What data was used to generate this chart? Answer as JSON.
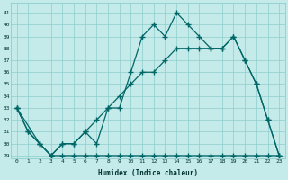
{
  "xlabel": "Humidex (Indice chaleur)",
  "bg_color": "#c5eaea",
  "grid_color": "#8ecece",
  "line_color": "#006666",
  "xlim": [
    -0.5,
    23.5
  ],
  "ylim": [
    28.8,
    41.8
  ],
  "xticks": [
    0,
    1,
    2,
    3,
    4,
    5,
    6,
    7,
    8,
    9,
    10,
    11,
    12,
    13,
    14,
    15,
    16,
    17,
    18,
    19,
    20,
    21,
    22,
    23
  ],
  "yticks": [
    29,
    30,
    31,
    32,
    33,
    34,
    35,
    36,
    37,
    38,
    39,
    40,
    41
  ],
  "line1_x": [
    0,
    1,
    2,
    3,
    4,
    5,
    6,
    7,
    8,
    9,
    10,
    11,
    12,
    13,
    14,
    15,
    16,
    17,
    18,
    19,
    20,
    21,
    22,
    23
  ],
  "line1_y": [
    33,
    31,
    30,
    29,
    30,
    30,
    31,
    30,
    33,
    33,
    36,
    39,
    40,
    39,
    41,
    40,
    39,
    38,
    38,
    39,
    37,
    35,
    32,
    29
  ],
  "line2_x": [
    0,
    1,
    2,
    3,
    4,
    5,
    6,
    7,
    8,
    9,
    10,
    11,
    12,
    13,
    14,
    15,
    16,
    17,
    18,
    19,
    20,
    21,
    22,
    23
  ],
  "line2_y": [
    33,
    31,
    30,
    29,
    30,
    30,
    31,
    32,
    33,
    34,
    35,
    36,
    36,
    37,
    38,
    38,
    38,
    38,
    38,
    39,
    37,
    35,
    32,
    29
  ],
  "line3_x": [
    0,
    2,
    3,
    4,
    5,
    6,
    7,
    8,
    9,
    10,
    11,
    12,
    13,
    14,
    15,
    16,
    17,
    18,
    19,
    20,
    21,
    22,
    23
  ],
  "line3_y": [
    33,
    30,
    29,
    29,
    29,
    29,
    29,
    29,
    29,
    29,
    29,
    29,
    29,
    29,
    29,
    29,
    29,
    29,
    29,
    29,
    29,
    29,
    29
  ]
}
